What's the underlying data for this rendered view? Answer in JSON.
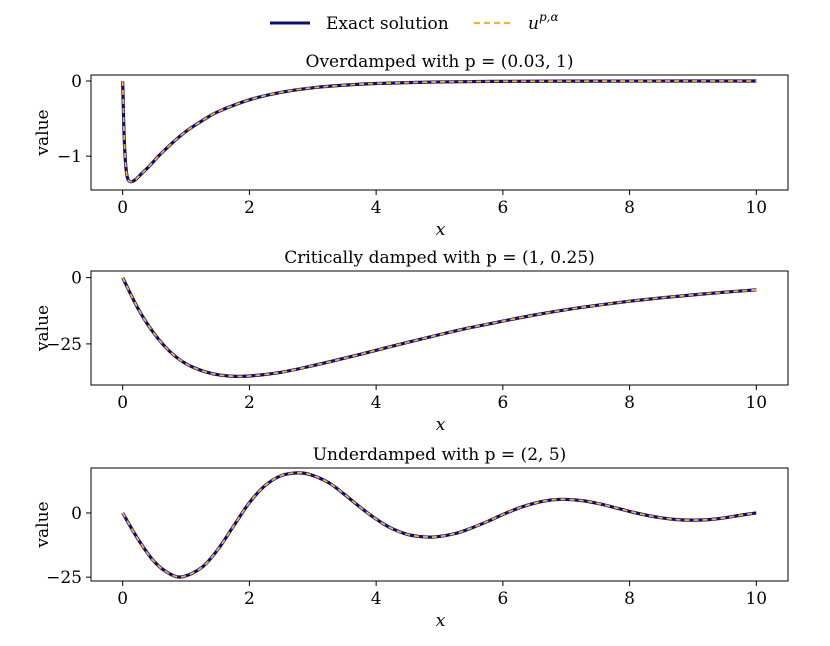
{
  "legend": {
    "entries": [
      {
        "label": "Exact solution",
        "color": "#0d0d6b",
        "style": "solid"
      },
      {
        "label": "u^{p,α}",
        "color": "#f5b041",
        "style": "dashed"
      }
    ],
    "legend_second_base": "u",
    "legend_second_sup": "p,α"
  },
  "chart_data": [
    {
      "type": "line",
      "title": "Overdamped with p = (0.03, 1)",
      "title_prefix": "Overdamped with ",
      "title_math": "p = (0.03, 1)",
      "xlabel": "x",
      "ylabel": "value",
      "xlim": [
        -0.5,
        10.5
      ],
      "ylim": [
        -1.45,
        0.08
      ],
      "xticks": [
        0,
        2,
        4,
        6,
        8,
        10
      ],
      "yticks": [
        0,
        -1
      ],
      "ytick_labels": [
        "0",
        "−1"
      ],
      "series": [
        {
          "name": "Exact solution",
          "x": [
            0,
            0.02,
            0.04,
            0.06,
            0.08,
            0.1,
            0.13,
            0.17,
            0.22,
            0.3,
            0.4,
            0.5,
            0.6,
            0.8,
            1.0,
            1.25,
            1.5,
            2.0,
            2.5,
            3.0,
            3.5,
            4.0,
            5.0,
            6.0,
            7.0,
            8.0,
            9.0,
            10.0
          ],
          "y": [
            0,
            -0.67,
            -1.03,
            -1.22,
            -1.3,
            -1.33,
            -1.34,
            -1.33,
            -1.3,
            -1.23,
            -1.15,
            -1.06,
            -0.97,
            -0.81,
            -0.67,
            -0.53,
            -0.41,
            -0.25,
            -0.15,
            -0.09,
            -0.055,
            -0.033,
            -0.012,
            -0.0045,
            -0.0017,
            -0.0006,
            -0.0002,
            -0.0001
          ]
        }
      ]
    },
    {
      "type": "line",
      "title": "Critically damped with p = (1, 0.25)",
      "title_prefix": "Critically damped with ",
      "title_math": "p = (1, 0.25)",
      "xlabel": "x",
      "ylabel": "value",
      "xlim": [
        -0.5,
        10.5
      ],
      "ylim": [
        -40.5,
        2.5
      ],
      "xticks": [
        0,
        2,
        4,
        6,
        8,
        10
      ],
      "yticks": [
        0,
        -25
      ],
      "ytick_labels": [
        "0",
        "−25"
      ],
      "series": [
        {
          "name": "Exact solution",
          "x": [
            0,
            0.25,
            0.5,
            0.75,
            1.0,
            1.25,
            1.5,
            1.75,
            2.0,
            2.5,
            3.0,
            3.5,
            4.0,
            4.5,
            5.0,
            5.5,
            6.0,
            6.5,
            7.0,
            7.5,
            8.0,
            8.5,
            9.0,
            9.5,
            10.0
          ],
          "y": [
            0,
            -12.0,
            -21.2,
            -28.0,
            -32.5,
            -35.1,
            -36.6,
            -37.2,
            -37.1,
            -35.7,
            -33.2,
            -30.4,
            -27.4,
            -24.4,
            -21.5,
            -18.8,
            -16.4,
            -14.1,
            -12.1,
            -10.4,
            -8.9,
            -7.6,
            -6.5,
            -5.5,
            -4.6
          ]
        }
      ]
    },
    {
      "type": "line",
      "title": "Underdamped with p = (2, 5)",
      "title_prefix": "Underdamped with ",
      "title_math": "p = (2, 5)",
      "xlabel": "x",
      "ylabel": "value",
      "xlim": [
        -0.5,
        10.5
      ],
      "ylim": [
        -26.5,
        17.5
      ],
      "xticks": [
        0,
        2,
        4,
        6,
        8,
        10
      ],
      "yticks": [
        0,
        -25
      ],
      "ytick_labels": [
        "0",
        "−25"
      ],
      "series": [
        {
          "name": "Exact solution",
          "x": [
            0,
            0.25,
            0.5,
            0.75,
            0.95,
            1.25,
            1.5,
            1.75,
            2.0,
            2.25,
            2.5,
            2.75,
            2.95,
            3.25,
            3.5,
            3.75,
            4.0,
            4.25,
            4.5,
            4.75,
            4.95,
            5.25,
            5.5,
            5.75,
            6.0,
            6.25,
            6.5,
            6.75,
            6.95,
            7.25,
            7.5,
            7.75,
            8.0,
            8.25,
            8.5,
            8.75,
            8.95,
            9.25,
            9.5,
            9.75,
            10.0
          ],
          "y": [
            0,
            -10.5,
            -19.0,
            -23.8,
            -24.8,
            -21.2,
            -14.3,
            -5.1,
            4.0,
            10.7,
            14.5,
            15.6,
            15.0,
            11.8,
            7.2,
            2.2,
            -2.4,
            -6.1,
            -8.4,
            -9.3,
            -9.3,
            -8.0,
            -5.9,
            -3.4,
            -0.6,
            1.9,
            3.8,
            5.0,
            5.3,
            4.8,
            3.7,
            2.2,
            0.6,
            -0.8,
            -1.9,
            -2.6,
            -2.8,
            -2.6,
            -1.9,
            -0.9,
            0.0
          ]
        }
      ]
    }
  ]
}
